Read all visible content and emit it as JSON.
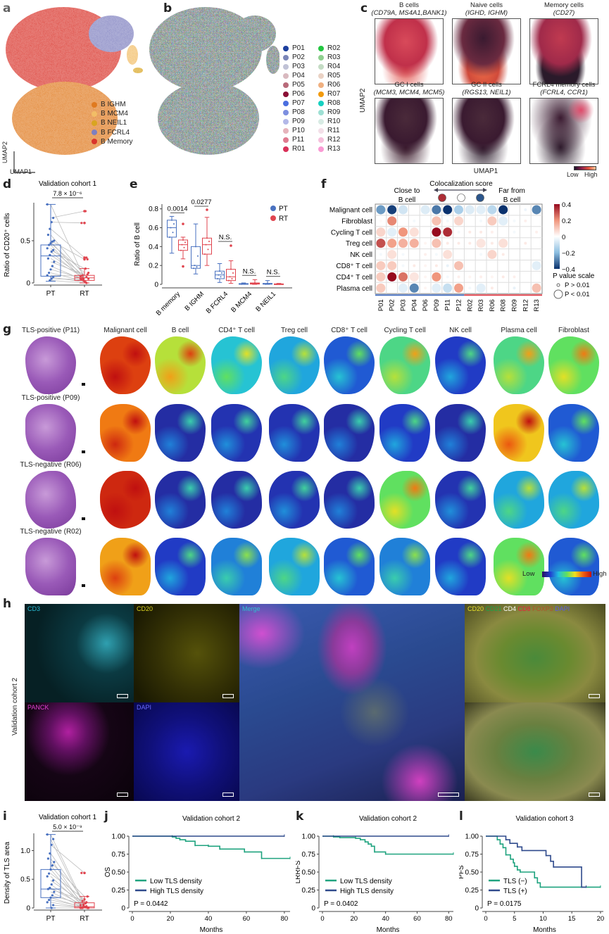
{
  "panel_labels": {
    "a": "a",
    "b": "b",
    "c": "c",
    "d": "d",
    "e": "e",
    "f": "f",
    "g": "g",
    "h": "h",
    "i": "i",
    "j": "j",
    "k": "k",
    "l": "l"
  },
  "panel_a": {
    "axis_x": "UMAP1",
    "axis_y": "UMAP2",
    "legend": [
      {
        "label": "B IGHM",
        "color": "#e07a1f"
      },
      {
        "label": "B MCM4",
        "color": "#f2bd66"
      },
      {
        "label": "B NEIL1",
        "color": "#d9a520"
      },
      {
        "label": "B FCRL4",
        "color": "#7e7fbf"
      },
      {
        "label": "B Memory",
        "color": "#d9342b"
      }
    ]
  },
  "panel_b": {
    "legend": [
      {
        "label": "P01",
        "color": "#1c3f9e"
      },
      {
        "label": "P02",
        "color": "#7b86b8"
      },
      {
        "label": "P03",
        "color": "#c0c2d6"
      },
      {
        "label": "P04",
        "color": "#d9b9bf"
      },
      {
        "label": "P05",
        "color": "#b86a7a"
      },
      {
        "label": "P06",
        "color": "#8a0f35"
      },
      {
        "label": "P07",
        "color": "#4a6ee0"
      },
      {
        "label": "P08",
        "color": "#7d8fe0"
      },
      {
        "label": "P09",
        "color": "#b3b8e8"
      },
      {
        "label": "P10",
        "color": "#e6b3bb"
      },
      {
        "label": "P11",
        "color": "#e07a8f"
      },
      {
        "label": "R01",
        "color": "#d93058"
      },
      {
        "label": "R02",
        "color": "#22c640"
      },
      {
        "label": "R03",
        "color": "#8fd08f"
      },
      {
        "label": "R04",
        "color": "#c4dcc4"
      },
      {
        "label": "R05",
        "color": "#ead2c4"
      },
      {
        "label": "R06",
        "color": "#f0b080"
      },
      {
        "label": "R07",
        "color": "#f29a0c"
      },
      {
        "label": "R08",
        "color": "#16d0c0"
      },
      {
        "label": "R09",
        "color": "#9ee0d4"
      },
      {
        "label": "R10",
        "color": "#d8ebe4"
      },
      {
        "label": "R11",
        "color": "#f3dfe8"
      },
      {
        "label": "R12",
        "color": "#f6c0dc"
      },
      {
        "label": "R13",
        "color": "#fa9ad4"
      }
    ]
  },
  "panel_c": {
    "axis_x": "UMAP1",
    "axis_y": "UMAP2",
    "colorbar_low": "Low",
    "colorbar_high": "High",
    "panels": [
      {
        "title": "B cells",
        "genes": "(CD79A, MS4A1,BANK1)"
      },
      {
        "title": "Naive cells",
        "genes": "(IGHD, IGHM)"
      },
      {
        "title": "Memory cells",
        "genes": "(CD27)"
      },
      {
        "title": "GC I cells",
        "genes": "(MCM3, MCM4, MCM5)"
      },
      {
        "title": "GC II cells",
        "genes": "(RGS13, NEIL1)"
      },
      {
        "title": "FCRL4 memory cells",
        "genes": "(FCRL4, CCR1)"
      }
    ]
  },
  "panel_g": {
    "colorbar_low": "Low",
    "colorbar_high": "High",
    "columns": [
      "Malignant cell",
      "B cell",
      "CD4⁺ T cell",
      "Treg cell",
      "CD8⁺ T cell",
      "Cycling T cell",
      "NK cell",
      "Plasma cell",
      "Fibroblast"
    ],
    "rows": [
      "TLS-positive (P11)",
      "TLS-positive (P09)",
      "TLS-negative (R06)",
      "TLS-negative (R02)"
    ]
  },
  "panel_h": {
    "row_label": "Validation cohort 2",
    "channels": {
      "cd3": "CD3",
      "cd20": "CD20",
      "panck": "PANCK",
      "dapi": "DAPI",
      "merge": "Merge"
    },
    "multiplex": [
      {
        "label": "CD20",
        "color": "#e6e02a"
      },
      {
        "label": "CD21",
        "color": "#1aa64a"
      },
      {
        "label": "CD4",
        "color": "#ffffff"
      },
      {
        "label": "CD8",
        "color": "#e8233a"
      },
      {
        "label": "FOXP3",
        "color": "#b5502a"
      },
      {
        "label": "DAPI",
        "color": "#5a5ae6"
      }
    ]
  },
  "colors": {
    "pt": "#4a72c0",
    "rt": "#e0454f",
    "low_tls": "#1fa37f",
    "high_tls": "#2f4a8c",
    "grey_line": "#bdbdbd"
  },
  "chart_data": [
    {
      "id": "d",
      "type": "box",
      "title": "Validation cohort 1",
      "ylabel": "Ratio of CD20⁺ cells",
      "categories": [
        "PT",
        "RT"
      ],
      "ylim": [
        0,
        0.95
      ],
      "yticks": [
        0,
        0.5
      ],
      "ytick_labels": [
        "0",
        "0.5"
      ],
      "pvalue": "7.8 × 10⁻⁶",
      "boxes": [
        {
          "min": 0.02,
          "q1": 0.08,
          "median": 0.32,
          "q3": 0.45,
          "max": 0.93
        },
        {
          "min": 0.0,
          "q1": 0.03,
          "median": 0.06,
          "q3": 0.09,
          "max": 0.17,
          "outliers": [
            0.28,
            0.3,
            0.71,
            0.85
          ]
        }
      ],
      "pairs": [
        [
          0.93,
          0.05
        ],
        [
          0.77,
          0.85
        ],
        [
          0.72,
          0.71
        ],
        [
          0.64,
          0.3
        ],
        [
          0.57,
          0.09
        ],
        [
          0.5,
          0.28
        ],
        [
          0.49,
          0.05
        ],
        [
          0.47,
          0.12
        ],
        [
          0.45,
          0.02
        ],
        [
          0.41,
          0.08
        ],
        [
          0.39,
          0.17
        ],
        [
          0.37,
          0.04
        ],
        [
          0.33,
          0.07
        ],
        [
          0.29,
          0.06
        ],
        [
          0.25,
          0.1
        ],
        [
          0.2,
          0.03
        ],
        [
          0.16,
          0.05
        ],
        [
          0.12,
          0.02
        ],
        [
          0.09,
          0.08
        ],
        [
          0.07,
          0.01
        ],
        [
          0.05,
          0.04
        ],
        [
          0.03,
          0.0
        ]
      ]
    },
    {
      "id": "e",
      "type": "box",
      "ylabel": "Ratio of B cell",
      "categories": [
        "B memory",
        "B IGHM",
        "B FCRL4",
        "B MCM4",
        "B NEIL1"
      ],
      "ylim": [
        0,
        0.85
      ],
      "yticks": [
        0,
        0.2,
        0.4,
        0.6,
        0.8
      ],
      "ytick_labels": [
        "0",
        "0.2",
        "0.4",
        "0.6",
        "0.8"
      ],
      "legend": [
        {
          "label": "PT"
        },
        {
          "label": "RT"
        }
      ],
      "annotations": [
        "0.0014",
        "0.0277",
        "N.S.",
        "N.S.",
        "N.S."
      ],
      "series": [
        {
          "name": "PT",
          "boxes": [
            {
              "min": 0.33,
              "q1": 0.5,
              "median": 0.6,
              "q3": 0.68,
              "max": 0.72
            },
            {
              "min": 0.11,
              "q1": 0.17,
              "median": 0.2,
              "q3": 0.4,
              "max": 0.64
            },
            {
              "min": 0.02,
              "q1": 0.06,
              "median": 0.1,
              "q3": 0.14,
              "max": 0.22
            },
            {
              "min": 0,
              "q1": 0.002,
              "median": 0.004,
              "q3": 0.008,
              "max": 0.015
            },
            {
              "min": 0,
              "q1": 0.002,
              "median": 0.005,
              "q3": 0.01,
              "max": 0.04
            }
          ]
        },
        {
          "name": "RT",
          "boxes": [
            {
              "min": 0.27,
              "q1": 0.36,
              "median": 0.42,
              "q3": 0.47,
              "max": 0.5,
              "outliers": [
                0.64,
                0.19
              ]
            },
            {
              "min": 0.2,
              "q1": 0.32,
              "median": 0.42,
              "q3": 0.49,
              "max": 0.71,
              "outliers": [
                0.79
              ]
            },
            {
              "min": 0.01,
              "q1": 0.04,
              "median": 0.08,
              "q3": 0.16,
              "max": 0.25,
              "outliers": [
                0.41
              ]
            },
            {
              "min": 0,
              "q1": 0.003,
              "median": 0.008,
              "q3": 0.015,
              "max": 0.05
            },
            {
              "min": 0,
              "q1": 0.001,
              "median": 0.003,
              "q3": 0.005,
              "max": 0.01
            }
          ]
        }
      ]
    },
    {
      "id": "f",
      "type": "heatmap",
      "title": "Colocalization score",
      "left_label": "Close to B cell",
      "right_label": "Far from B cell",
      "colorbar_ticks": [
        "0.4",
        "0.2",
        "0",
        "−0.2",
        "−0.4"
      ],
      "clim": [
        -0.4,
        0.4
      ],
      "size_legend_title": "P value scale",
      "size_legend": [
        "P > 0.01",
        "P < 0.01"
      ],
      "columns": [
        "P01",
        "P02",
        "P03",
        "P04",
        "P06",
        "P09",
        "P11",
        "P12",
        "R02",
        "R03",
        "R06",
        "R08",
        "R09",
        "R12",
        "R13"
      ],
      "rows": [
        "Malignant cell",
        "Fibroblast",
        "Cycling T cell",
        "Treg cell",
        "NK cell",
        "CD8⁺ T cell",
        "CD4⁺ T cell",
        "Plasma cell"
      ],
      "values": [
        [
          -0.25,
          -0.38,
          -0.08,
          0,
          -0.06,
          -0.3,
          -0.4,
          -0.15,
          -0.06,
          -0.05,
          -0.12,
          -0.4,
          0,
          -0.03,
          -0.28
        ],
        [
          0.01,
          0.22,
          0,
          -0.02,
          0,
          0.12,
          -0.02,
          0.08,
          0,
          -0.02,
          0.1,
          -0.05,
          -0.02,
          0.03,
          0
        ],
        [
          0.08,
          -0.05,
          0.2,
          0.06,
          0,
          0.4,
          0.35,
          -0.02,
          0.04,
          0.04,
          0.03,
          0,
          -0.02,
          0,
          0.03
        ],
        [
          0.3,
          0.18,
          0.15,
          0.15,
          0.02,
          0.12,
          0.04,
          0.04,
          0.04,
          0.05,
          0.04,
          0.06,
          0,
          0.04,
          0
        ],
        [
          -0.02,
          0.06,
          -0.02,
          0,
          0.03,
          -0.02,
          0.06,
          0,
          0,
          -0.02,
          0.08,
          0.04,
          0,
          0,
          0
        ],
        [
          0.1,
          0.1,
          -0.02,
          0.04,
          0.02,
          0.04,
          -0.04,
          0.12,
          0,
          0,
          0,
          0,
          0,
          0,
          -0.05
        ],
        [
          0.1,
          0.4,
          0.25,
          0.05,
          0.02,
          0.2,
          -0.02,
          0.03,
          0.02,
          0.03,
          0.02,
          0.04,
          0.03,
          0,
          0
        ],
        [
          0.1,
          0,
          -0.05,
          -0.28,
          0.02,
          -0.05,
          -0.1,
          0.18,
          -0.02,
          -0.05,
          0.04,
          0,
          -0.04,
          0,
          0.12
        ]
      ]
    },
    {
      "id": "i",
      "type": "box",
      "title": "Validation cohort 1",
      "ylabel": "Density of TLS area",
      "categories": [
        "PT",
        "RT"
      ],
      "ylim": [
        0,
        1.3
      ],
      "yticks": [
        0,
        0.5,
        1.0
      ],
      "ytick_labels": [
        "0",
        "0.5",
        "1.0"
      ],
      "pvalue": "5.0 × 10⁻⁹",
      "boxes": [
        {
          "min": 0,
          "q1": 0.18,
          "median": 0.33,
          "q3": 0.67,
          "max": 1.28
        },
        {
          "min": 0,
          "q1": 0,
          "median": 0.02,
          "q3": 0.09,
          "max": 0.2,
          "outliers": [
            0.61
          ]
        }
      ],
      "pairs": [
        [
          1.28,
          0.05
        ],
        [
          1.2,
          0.02
        ],
        [
          1.1,
          0.61
        ],
        [
          0.95,
          0.1
        ],
        [
          0.86,
          0
        ],
        [
          0.8,
          0.2
        ],
        [
          0.74,
          0.04
        ],
        [
          0.67,
          0
        ],
        [
          0.6,
          0.15
        ],
        [
          0.55,
          0.01
        ],
        [
          0.48,
          0.08
        ],
        [
          0.41,
          0
        ],
        [
          0.35,
          0.03
        ],
        [
          0.33,
          0.12
        ],
        [
          0.28,
          0
        ],
        [
          0.22,
          0.06
        ],
        [
          0.18,
          0
        ],
        [
          0.14,
          0.02
        ],
        [
          0.1,
          0
        ],
        [
          0.05,
          0.01
        ],
        [
          0,
          0
        ]
      ]
    },
    {
      "id": "j",
      "type": "line",
      "subtype": "kaplan-meier",
      "title": "Validation cohort 2",
      "xlabel": "Months",
      "ylabel": "OS",
      "xlim": [
        0,
        83
      ],
      "ylim": [
        0,
        1
      ],
      "xticks": [
        0,
        20,
        40,
        60,
        80
      ],
      "yticks": [
        "0",
        "0.25",
        "0.50",
        "0.75",
        "1.00"
      ],
      "pvalue": "P = 0.0442",
      "series": [
        {
          "name": "Low TLS density",
          "points": [
            [
              0,
              1
            ],
            [
              21,
              0.99
            ],
            [
              23,
              0.97
            ],
            [
              25,
              0.95
            ],
            [
              28,
              0.93
            ],
            [
              33,
              0.87
            ],
            [
              40,
              0.86
            ],
            [
              46,
              0.82
            ],
            [
              59,
              0.78
            ],
            [
              68,
              0.69
            ],
            [
              83,
              0.69
            ]
          ]
        },
        {
          "name": "High TLS density",
          "points": [
            [
              0,
              1
            ],
            [
              80,
              1
            ]
          ]
        }
      ]
    },
    {
      "id": "k",
      "type": "line",
      "subtype": "kaplan-meier",
      "title": "Validation cohort 2",
      "xlabel": "Months",
      "ylabel": "LRRFS",
      "xlim": [
        0,
        83
      ],
      "ylim": [
        0,
        1
      ],
      "xticks": [
        0,
        20,
        40,
        60,
        80
      ],
      "yticks": [
        "0",
        "0.25",
        "0.50",
        "0.75",
        "1.00"
      ],
      "pvalue": "P = 0.0402",
      "series": [
        {
          "name": "Low TLS density",
          "points": [
            [
              0,
              1
            ],
            [
              7,
              0.99
            ],
            [
              11,
              0.98
            ],
            [
              21,
              0.97
            ],
            [
              24,
              0.95
            ],
            [
              27,
              0.92
            ],
            [
              29,
              0.89
            ],
            [
              31,
              0.86
            ],
            [
              33,
              0.78
            ],
            [
              40,
              0.75
            ],
            [
              83,
              0.75
            ]
          ]
        },
        {
          "name": "High TLS density",
          "points": [
            [
              0,
              1
            ],
            [
              80,
              1
            ]
          ]
        }
      ]
    },
    {
      "id": "l",
      "type": "line",
      "subtype": "kaplan-meier",
      "title": "Validation cohort 3",
      "xlabel": "Months",
      "ylabel": "PFS",
      "xlim": [
        0,
        20.5
      ],
      "ylim": [
        0,
        1
      ],
      "xticks": [
        0,
        5,
        10,
        15,
        20
      ],
      "yticks": [
        "0",
        "0.25",
        "0.50",
        "0.75",
        "1.00"
      ],
      "pvalue": "P = 0.0175",
      "series": [
        {
          "name": "TLS (−)",
          "points": [
            [
              0,
              1
            ],
            [
              2,
              0.95
            ],
            [
              2.5,
              0.89
            ],
            [
              3,
              0.84
            ],
            [
              3.5,
              0.74
            ],
            [
              4.3,
              0.68
            ],
            [
              4.8,
              0.63
            ],
            [
              5,
              0.58
            ],
            [
              5.5,
              0.53
            ],
            [
              6,
              0.5
            ],
            [
              8.5,
              0.42
            ],
            [
              9,
              0.35
            ],
            [
              9.5,
              0.29
            ],
            [
              20,
              0.29
            ]
          ]
        },
        {
          "name": "TLS (+)",
          "points": [
            [
              0,
              1
            ],
            [
              3.5,
              0.95
            ],
            [
              4.2,
              0.9
            ],
            [
              5.5,
              0.85
            ],
            [
              6.3,
              0.8
            ],
            [
              10.5,
              0.73
            ],
            [
              11.3,
              0.65
            ],
            [
              11.8,
              0.57
            ],
            [
              16.7,
              0.29
            ],
            [
              17.5,
              0.29
            ]
          ]
        }
      ]
    }
  ]
}
